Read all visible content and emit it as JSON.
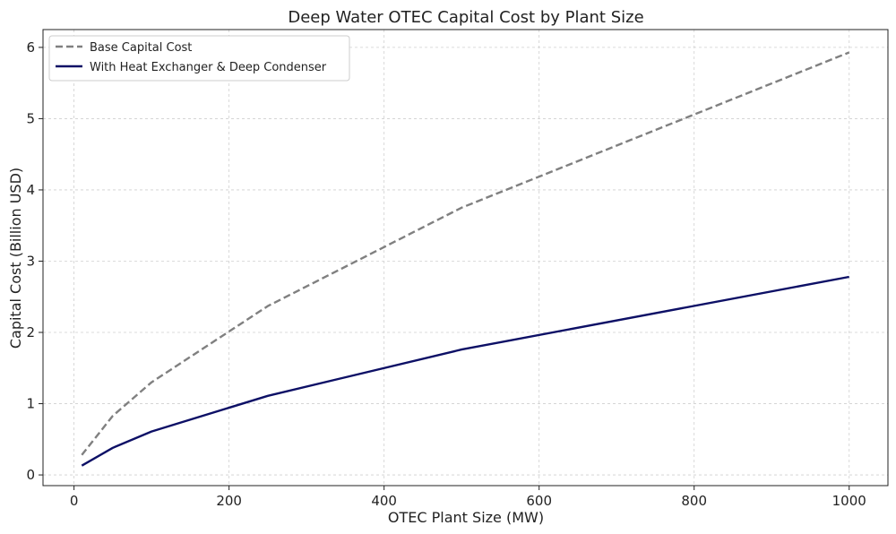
{
  "chart_data": {
    "type": "line",
    "title": "Deep Water OTEC Capital Cost by Plant Size",
    "xlabel": "OTEC Plant Size (MW)",
    "ylabel": "Capital Cost (Billion USD)",
    "xlim": [
      -40,
      1050
    ],
    "ylim": [
      -0.15,
      6.25
    ],
    "xticks": [
      0,
      200,
      400,
      600,
      800,
      1000
    ],
    "yticks": [
      0,
      1,
      2,
      3,
      4,
      5,
      6
    ],
    "grid": true,
    "legend_position": "upper-left",
    "x": [
      10,
      50,
      100,
      250,
      500,
      1000
    ],
    "series": [
      {
        "name": "Base Capital Cost",
        "values": [
          0.28,
          0.83,
          1.3,
          2.37,
          3.75,
          5.93
        ],
        "color": "#808080",
        "style": "dashed"
      },
      {
        "name": "With Heat Exchanger & Deep Condenser",
        "values": [
          0.13,
          0.38,
          0.61,
          1.11,
          1.76,
          2.78
        ],
        "color": "#0d1066",
        "style": "solid"
      }
    ]
  }
}
